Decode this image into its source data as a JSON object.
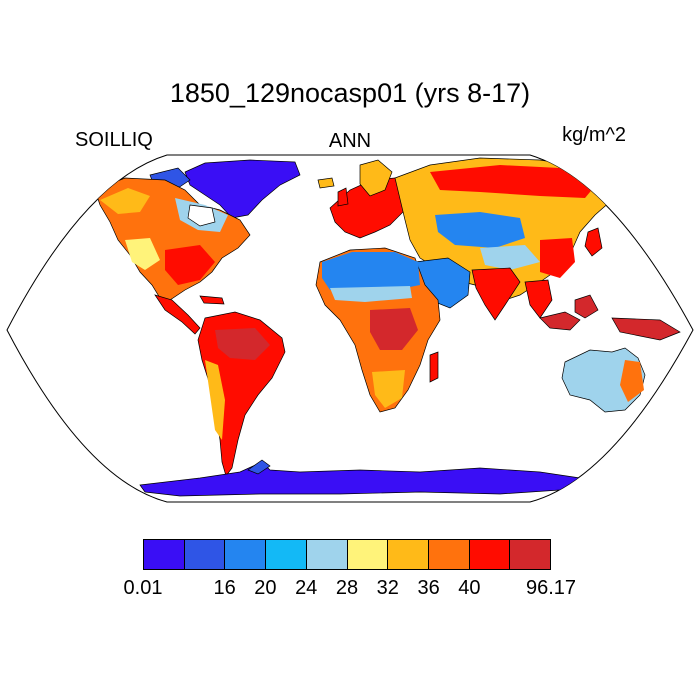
{
  "figure": {
    "title": "1850_129nocasp01 (yrs 8-17)",
    "left_label": "SOILLIQ",
    "center_label": "ANN",
    "right_label": "kg/m^2"
  },
  "map": {
    "projection": "Robinson (global)",
    "field": "annual mean soil liquid water",
    "ocean_color": "#ffffff",
    "coastline_color": "#000000"
  },
  "colorbar": {
    "colors": [
      "#3a0ef5",
      "#2f55e6",
      "#2485f0",
      "#13b9f6",
      "#9fd3ec",
      "#fff37a",
      "#ffba18",
      "#ff720d",
      "#ff0c00",
      "#d3282c"
    ],
    "labels": [
      {
        "text": "0.01",
        "boundary": 0
      },
      {
        "text": "16",
        "boundary": 2
      },
      {
        "text": "20",
        "boundary": 3
      },
      {
        "text": "24",
        "boundary": 4
      },
      {
        "text": "28",
        "boundary": 5
      },
      {
        "text": "32",
        "boundary": 6
      },
      {
        "text": "36",
        "boundary": 7
      },
      {
        "text": "40",
        "boundary": 8
      },
      {
        "text": "96.17",
        "boundary": 10
      }
    ]
  }
}
